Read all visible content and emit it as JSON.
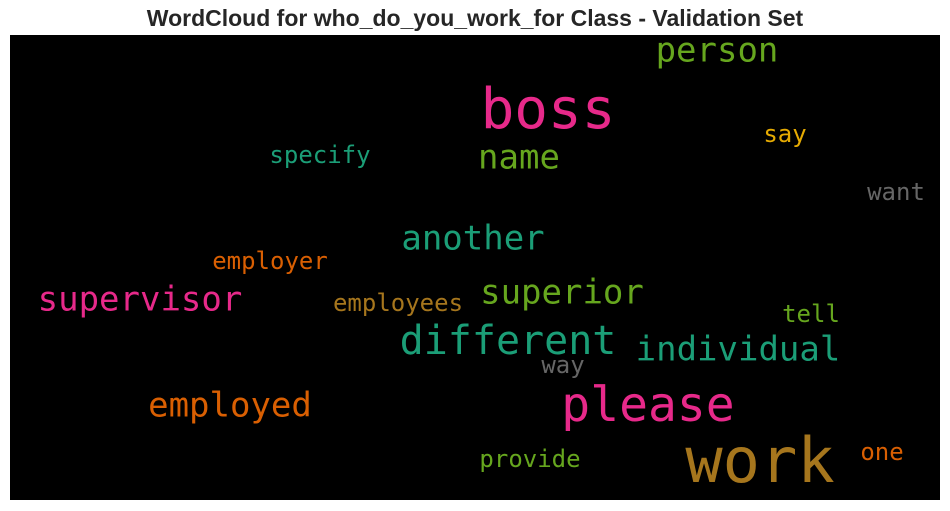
{
  "chart_data": {
    "type": "wordcloud",
    "title": "WordCloud for who_do_you_work_for Class - Validation Set",
    "background": "#000000",
    "words": [
      {
        "text": "work",
        "color": "#a6761d"
      },
      {
        "text": "boss",
        "color": "#e7298a"
      },
      {
        "text": "please",
        "color": "#e7298a"
      },
      {
        "text": "different",
        "color": "#1b9e77"
      },
      {
        "text": "supervisor",
        "color": "#e7298a"
      },
      {
        "text": "superior",
        "color": "#66a61e"
      },
      {
        "text": "individual",
        "color": "#1b9e77"
      },
      {
        "text": "another",
        "color": "#1b9e77"
      },
      {
        "text": "employed",
        "color": "#d95f02"
      },
      {
        "text": "person",
        "color": "#66a61e"
      },
      {
        "text": "name",
        "color": "#66a61e"
      },
      {
        "text": "employees",
        "color": "#a6761d"
      },
      {
        "text": "specify",
        "color": "#1b9e77"
      },
      {
        "text": "employer",
        "color": "#d95f02"
      },
      {
        "text": "provide",
        "color": "#66a61e"
      },
      {
        "text": "want",
        "color": "#666666"
      },
      {
        "text": "say",
        "color": "#e6ab02"
      },
      {
        "text": "tell",
        "color": "#66a61e"
      },
      {
        "text": "way",
        "color": "#666666"
      },
      {
        "text": "one",
        "color": "#d95f02"
      }
    ]
  }
}
